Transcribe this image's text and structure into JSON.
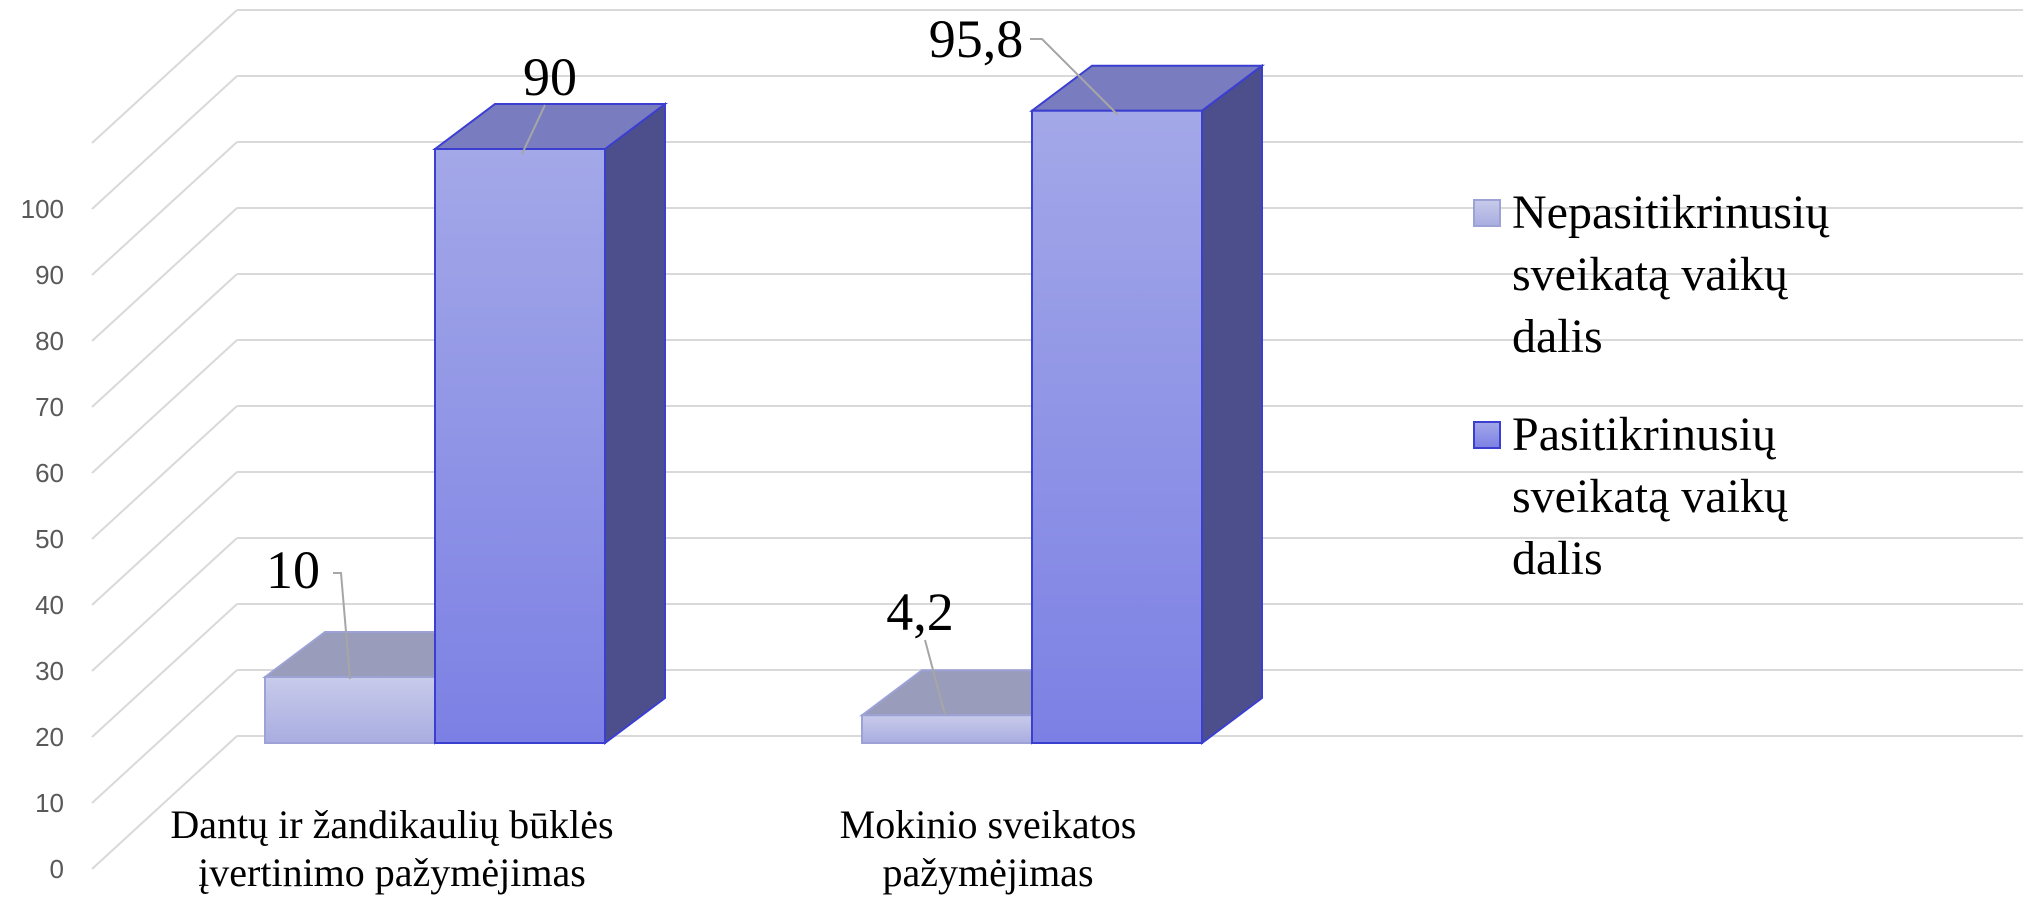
{
  "chart_data": {
    "type": "bar",
    "subtype": "3d-clustered-column",
    "categories": [
      [
        "Dantų ir žandikaulių būklės",
        "įvertinimo pažymėjimas"
      ],
      [
        "Mokinio sveikatos",
        "pažymėjimas"
      ]
    ],
    "series": [
      {
        "name": "Nepasitikrinusių sveikatą vaikų dalis",
        "legend_lines": [
          "Nepasitikrinusių",
          "sveikatą vaikų",
          "dalis"
        ],
        "values": [
          10,
          4.2
        ],
        "labels": [
          "10",
          "4,2"
        ],
        "color": "#c8cbea",
        "color_bottom": "#a9ade0",
        "outline": "#9da2d6"
      },
      {
        "name": "Pasitikrinusių sveikatą vaikų dalis",
        "legend_lines": [
          "Pasitikrinusių",
          "sveikatą vaikų",
          "dalis"
        ],
        "values": [
          90,
          95.8
        ],
        "labels": [
          "90",
          "95,8"
        ],
        "color": "#a3a8e8",
        "color_bottom": "#7c80e4",
        "outline": "#3b3fd0"
      }
    ],
    "y_ticks": [
      "0",
      "10",
      "20",
      "30",
      "40",
      "50",
      "60",
      "70",
      "80",
      "90",
      "100"
    ],
    "ylim": [
      0,
      110
    ],
    "grid": true,
    "legend_position": "right"
  }
}
